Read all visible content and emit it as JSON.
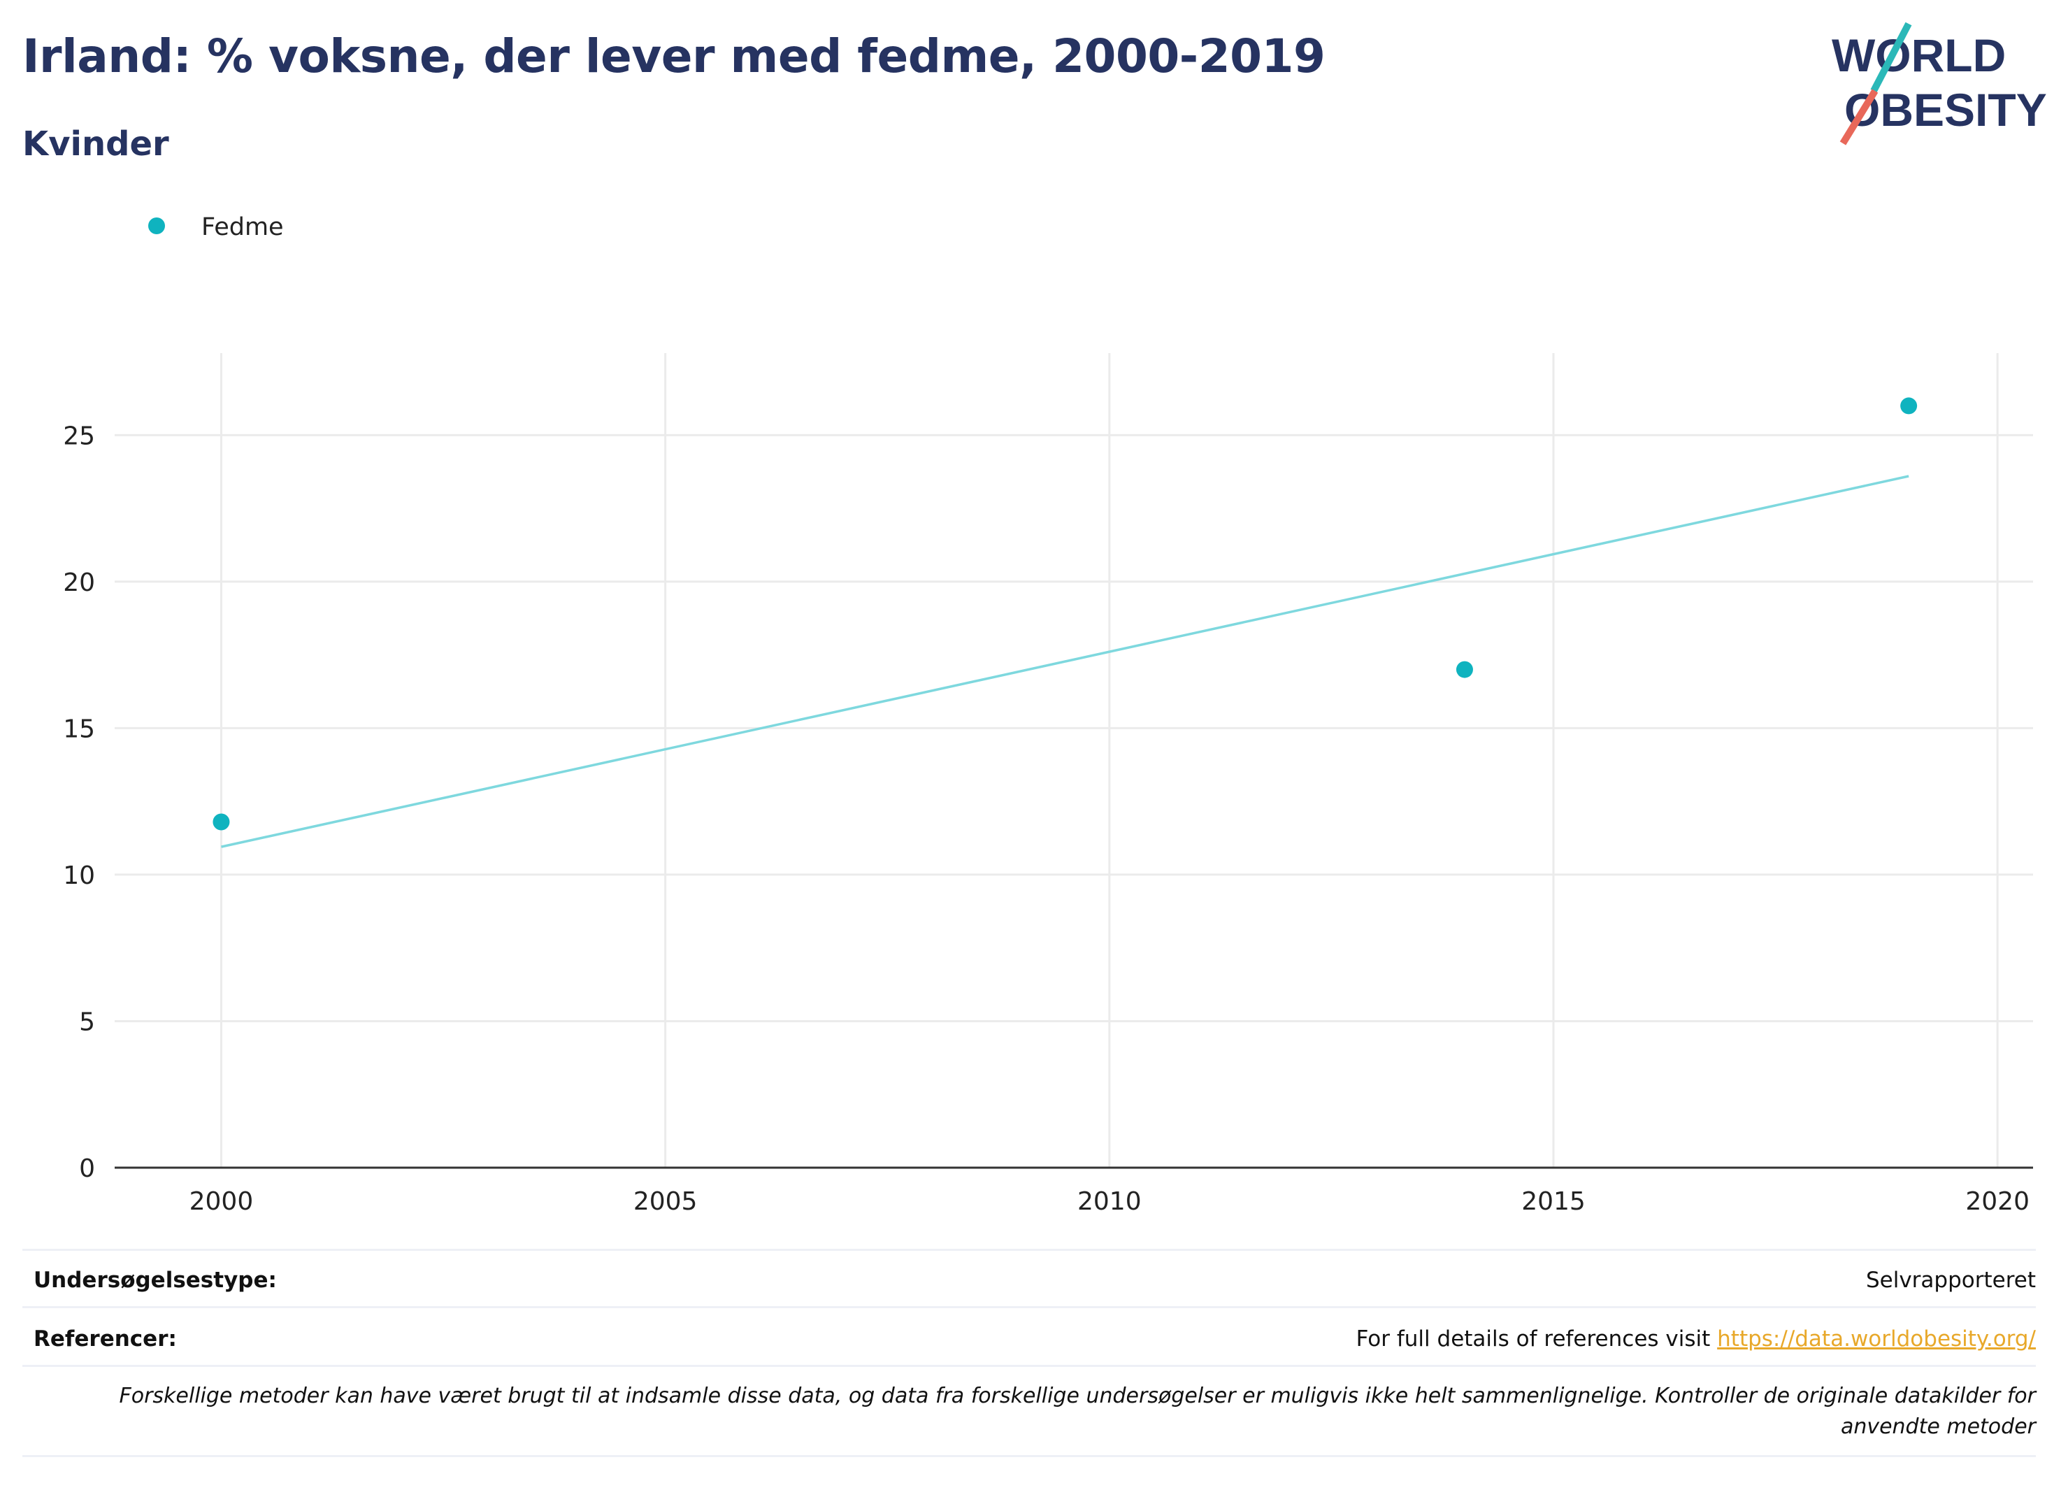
{
  "header": {
    "title": "Irland: % voksne, der lever med fedme, 2000-2019",
    "subtitle": "Kvinder"
  },
  "logo": {
    "line1": "WORLD",
    "line2": "OBESITY",
    "text_color": "#263361",
    "slash_top_color": "#2bb8b8",
    "slash_bottom_color": "#e8685a"
  },
  "chart_data": {
    "type": "scatter",
    "series": [
      {
        "name": "Fedme",
        "color": "#0fb3bf",
        "points": [
          {
            "x": 2000,
            "y": 11.8
          },
          {
            "x": 2014,
            "y": 17.0
          },
          {
            "x": 2019,
            "y": 26.0
          }
        ]
      }
    ],
    "trendline": {
      "color": "#7ed8de",
      "start": {
        "x": 2000,
        "y": 10.95
      },
      "end": {
        "x": 2019,
        "y": 23.6
      }
    },
    "xlim": [
      1998.8,
      2020.4
    ],
    "ylim": [
      0,
      27.8
    ],
    "x_ticks": [
      2000,
      2005,
      2010,
      2015,
      2020
    ],
    "y_ticks": [
      0,
      5,
      10,
      15,
      20,
      25
    ],
    "grid": true,
    "legend_position": "top-left"
  },
  "footer": {
    "survey_type_label": "Undersøgelsestype:",
    "survey_type_value": "Selvrapporteret",
    "references_label": "Referencer:",
    "references_text": "For full details of references visit ",
    "references_link": "https://data.worldobesity.org/",
    "note": "Forskellige metoder kan have været brugt til at indsamle disse data, og data fra forskellige undersøgelser er muligvis ikke helt sammenlignelige. Kontroller de originale datakilder for anvendte metoder"
  }
}
